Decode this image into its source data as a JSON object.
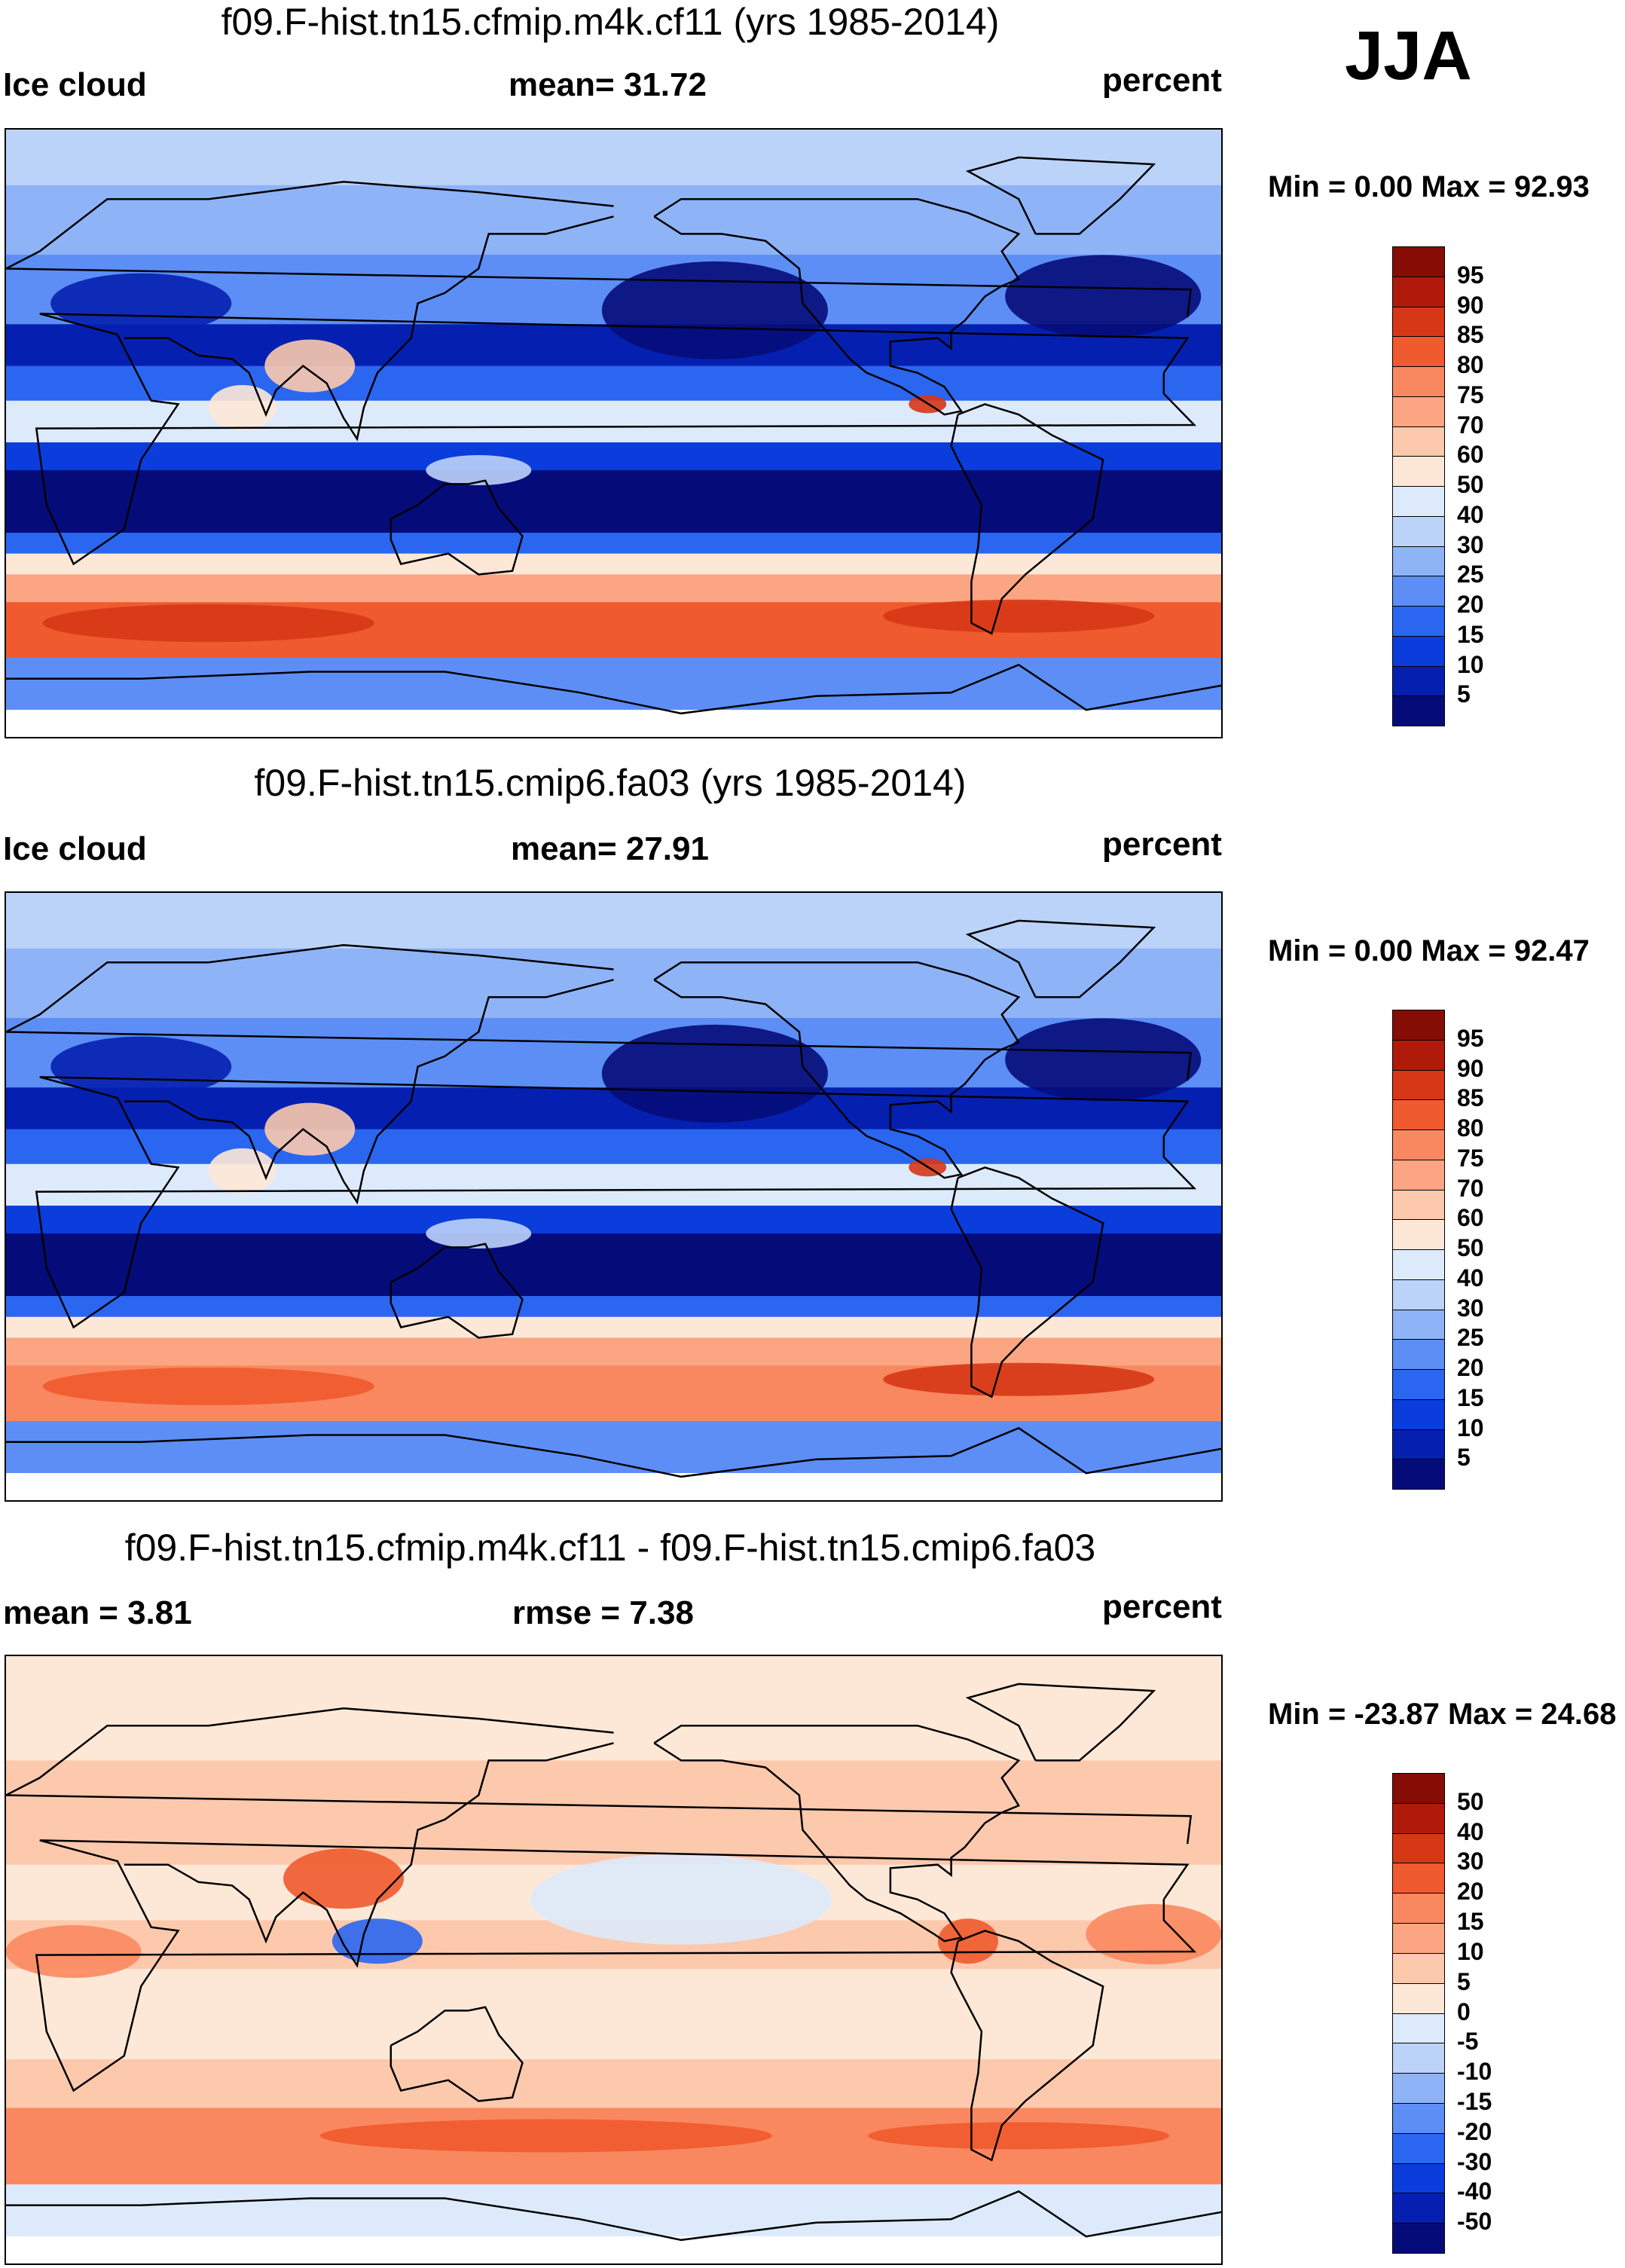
{
  "season": "JJA",
  "colors": {
    "ocean_bg": "#eaf3fb",
    "abs_scale": [
      "#050c7a",
      "#0520b0",
      "#0a3ddc",
      "#2a66ef",
      "#5c8ef5",
      "#8fb3f7",
      "#bcd3f9",
      "#ddeafb",
      "#fde8d7",
      "#fcc9ad",
      "#fba583",
      "#f98860",
      "#ef5a2e",
      "#d63716",
      "#b01a0a",
      "#850d05"
    ],
    "diff_scale": [
      "#050c7a",
      "#0520b0",
      "#0a3ddc",
      "#2a66ef",
      "#5c8ef5",
      "#8fb3f7",
      "#bcd3f9",
      "#ddeafb",
      "#fde8d7",
      "#fcc9ad",
      "#fba583",
      "#f98860",
      "#ef5a2e",
      "#d63716",
      "#b01a0a",
      "#850d05"
    ]
  },
  "chart_data": [
    {
      "type": "heatmap",
      "title": "f09.F-hist.tn15.cfmip.m4k.cf11 (yrs 1985-2014)",
      "left_label": "Ice cloud",
      "center_label": "mean=  31.72",
      "units": "percent",
      "min_max": "Min =   0.00 Max =  92.93",
      "mean": 31.72,
      "min": 0.0,
      "max": 92.93,
      "colorbar_ticks": [
        "95",
        "90",
        "85",
        "80",
        "75",
        "70",
        "60",
        "50",
        "40",
        "30",
        "25",
        "20",
        "15",
        "10",
        "5"
      ]
    },
    {
      "type": "heatmap",
      "title": "f09.F-hist.tn15.cmip6.fa03 (yrs 1985-2014)",
      "left_label": "Ice cloud",
      "center_label": "mean=  27.91",
      "units": "percent",
      "min_max": "Min =   0.00 Max =  92.47",
      "mean": 27.91,
      "min": 0.0,
      "max": 92.47,
      "colorbar_ticks": [
        "95",
        "90",
        "85",
        "80",
        "75",
        "70",
        "60",
        "50",
        "40",
        "30",
        "25",
        "20",
        "15",
        "10",
        "5"
      ]
    },
    {
      "type": "heatmap",
      "title": "f09.F-hist.tn15.cfmip.m4k.cf11 - f09.F-hist.tn15.cmip6.fa03",
      "left_label": "mean =   3.81",
      "center_label": "rmse =   7.38",
      "units": "percent",
      "min_max": "Min = -23.87 Max =  24.68",
      "mean": 3.81,
      "rmse": 7.38,
      "min": -23.87,
      "max": 24.68,
      "colorbar_ticks": [
        "50",
        "40",
        "30",
        "20",
        "15",
        "10",
        "5",
        "0",
        "-5",
        "-10",
        "-15",
        "-20",
        "-30",
        "-40",
        "-50"
      ]
    }
  ]
}
